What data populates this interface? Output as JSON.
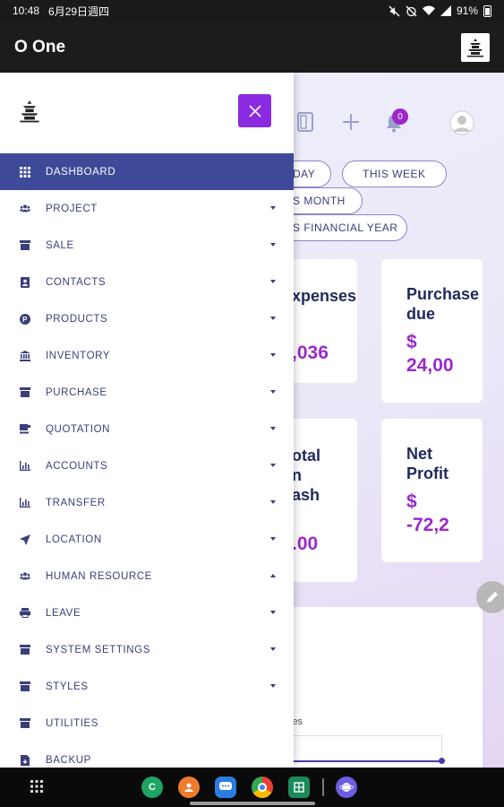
{
  "statusbar": {
    "time": "10:48",
    "date": "6月29日週四",
    "battery": "91%"
  },
  "appbar": {
    "title": "O One"
  },
  "filters": [
    {
      "label": "TODAY",
      "shown": "DAY"
    },
    {
      "label": "THIS WEEK",
      "shown": "THIS WEEK"
    },
    {
      "label": "THIS MONTH",
      "shown": "S MONTH"
    },
    {
      "label": "THIS FINANCIAL YEAR",
      "shown": "S FINANCIAL YEAR"
    }
  ],
  "notifications": {
    "count": "0"
  },
  "cards": [
    {
      "title": "xpenses",
      "value": ",036"
    },
    {
      "title": "Purchase\ndue",
      "value": "$\n24,00"
    },
    {
      "title": "otal\nn\nash",
      "value": ".00"
    },
    {
      "title": "Net\nProfit",
      "value": "$\n-72,2"
    }
  ],
  "chart_hint": {
    "legend_fragment": "les"
  },
  "drawer": {
    "items": [
      {
        "label": "DASHBOARD",
        "icon": "grid-icon",
        "caret": "none"
      },
      {
        "label": "PROJECT",
        "icon": "users-icon",
        "caret": "down"
      },
      {
        "label": "SALE",
        "icon": "store-icon",
        "caret": "down"
      },
      {
        "label": "CONTACTS",
        "icon": "address-book-icon",
        "caret": "down"
      },
      {
        "label": "PRODUCTS",
        "icon": "product-icon",
        "caret": "down"
      },
      {
        "label": "INVENTORY",
        "icon": "bank-icon",
        "caret": "down"
      },
      {
        "label": "PURCHASE",
        "icon": "shop-icon",
        "caret": "down"
      },
      {
        "label": "QUOTATION",
        "icon": "coffee-icon",
        "caret": "down"
      },
      {
        "label": "ACCOUNTS",
        "icon": "bar-chart-icon",
        "caret": "down"
      },
      {
        "label": "TRANSFER",
        "icon": "bar-chart-icon",
        "caret": "down"
      },
      {
        "label": "LOCATION",
        "icon": "location-arrow-icon",
        "caret": "down"
      },
      {
        "label": "HUMAN RESOURCE",
        "icon": "users-icon",
        "caret": "up"
      },
      {
        "label": "LEAVE",
        "icon": "printer-icon",
        "caret": "down"
      },
      {
        "label": "SYSTEM SETTINGS",
        "icon": "store-icon",
        "caret": "down"
      },
      {
        "label": "STYLES",
        "icon": "store-icon",
        "caret": "down"
      },
      {
        "label": "UTILITIES",
        "icon": "store-icon",
        "caret": "none"
      },
      {
        "label": "BACKUP",
        "icon": "file-icon",
        "caret": "none"
      }
    ]
  },
  "colors": {
    "active": "#3e4a98",
    "accent": "#8a2be2",
    "text": "#3a3f7a",
    "value": "#9b29c9"
  }
}
